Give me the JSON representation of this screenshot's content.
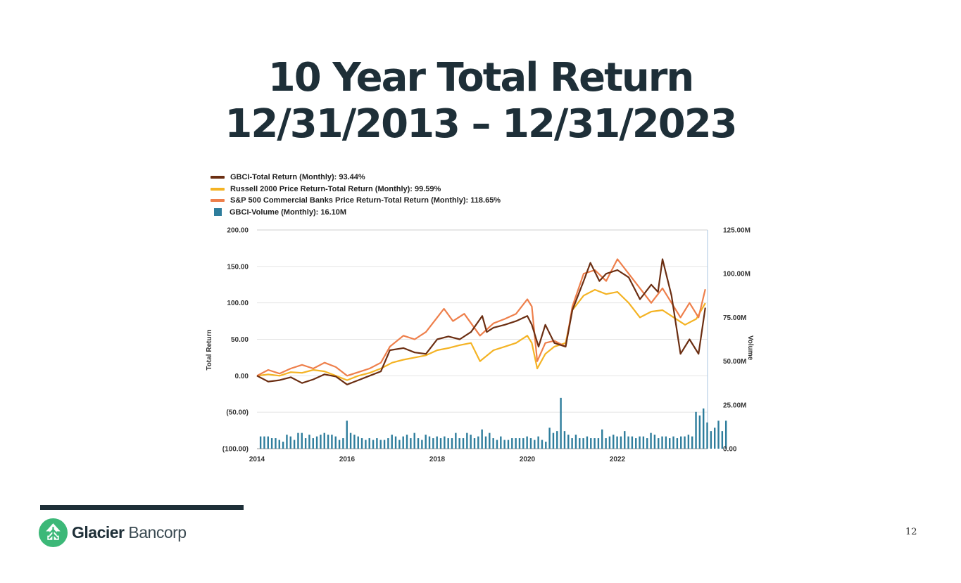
{
  "slide": {
    "title_line1": "10 Year Total Return",
    "title_line2": "12/31/2013 – 12/31/2023",
    "page_number": "12"
  },
  "logo": {
    "name_bold": "Glacier",
    "name_light": "Bancorp",
    "color": "#3cb878"
  },
  "chart_data": {
    "type": "line",
    "legend": [
      {
        "label": "GBCI-Total Return (Monthly): 93.44%",
        "color": "#6b2e12",
        "style": "line"
      },
      {
        "label": "Russell 2000 Price Return-Total Return (Monthly): 99.59%",
        "color": "#f4b324",
        "style": "line"
      },
      {
        "label": "S&P 500 Commercial Banks Price Return-Total Return (Monthly): 118.65%",
        "color": "#ee7f4b",
        "style": "line"
      },
      {
        "label": "GBCI-Volume (Monthly): 16.10M",
        "color": "#2e7d9c",
        "style": "bar"
      }
    ],
    "ylabel": "Total Return",
    "y2label": "Volume",
    "ylim": [
      -100,
      200
    ],
    "y2lim": [
      0,
      125
    ],
    "xlim": [
      2014,
      2024
    ],
    "y_ticks": [
      {
        "v": 200,
        "label": "200.00"
      },
      {
        "v": 150,
        "label": "150.00"
      },
      {
        "v": 100,
        "label": "100.00"
      },
      {
        "v": 50,
        "label": "50.00"
      },
      {
        "v": 0,
        "label": "0.00"
      },
      {
        "v": -50,
        "label": "(50.00)"
      },
      {
        "v": -100,
        "label": "(100.00)"
      }
    ],
    "y2_ticks": [
      {
        "v": 125,
        "label": "125.00M"
      },
      {
        "v": 100,
        "label": "100.00M"
      },
      {
        "v": 75,
        "label": "75.00M"
      },
      {
        "v": 50,
        "label": "50.00M"
      },
      {
        "v": 25,
        "label": "25.00M"
      },
      {
        "v": 0,
        "label": "0.00"
      }
    ],
    "x_ticks": [
      {
        "v": 2014,
        "label": "2014"
      },
      {
        "v": 2016,
        "label": "2016"
      },
      {
        "v": 2018,
        "label": "2018"
      },
      {
        "v": 2020,
        "label": "2020"
      },
      {
        "v": 2022,
        "label": "2022"
      }
    ],
    "grid": true,
    "legend_position": "top-left",
    "series": [
      {
        "name": "GBCI-Total Return (Monthly)",
        "color": "#6b2e12",
        "points": [
          [
            2014.0,
            0
          ],
          [
            2014.25,
            -8
          ],
          [
            2014.5,
            -6
          ],
          [
            2014.75,
            -2
          ],
          [
            2015.0,
            -10
          ],
          [
            2015.25,
            -5
          ],
          [
            2015.5,
            2
          ],
          [
            2015.75,
            -1
          ],
          [
            2016.0,
            -12
          ],
          [
            2016.25,
            -6
          ],
          [
            2016.5,
            0
          ],
          [
            2016.75,
            6
          ],
          [
            2016.95,
            35
          ],
          [
            2017.25,
            38
          ],
          [
            2017.5,
            32
          ],
          [
            2017.75,
            30
          ],
          [
            2018.0,
            50
          ],
          [
            2018.25,
            54
          ],
          [
            2018.5,
            50
          ],
          [
            2018.75,
            60
          ],
          [
            2019.0,
            82
          ],
          [
            2019.1,
            60
          ],
          [
            2019.25,
            66
          ],
          [
            2019.5,
            70
          ],
          [
            2019.75,
            75
          ],
          [
            2020.0,
            82
          ],
          [
            2020.1,
            70
          ],
          [
            2020.25,
            40
          ],
          [
            2020.4,
            70
          ],
          [
            2020.6,
            45
          ],
          [
            2020.85,
            40
          ],
          [
            2021.0,
            90
          ],
          [
            2021.25,
            130
          ],
          [
            2021.4,
            155
          ],
          [
            2021.6,
            130
          ],
          [
            2021.75,
            140
          ],
          [
            2022.0,
            145
          ],
          [
            2022.25,
            135
          ],
          [
            2022.5,
            105
          ],
          [
            2022.75,
            125
          ],
          [
            2022.9,
            115
          ],
          [
            2023.0,
            160
          ],
          [
            2023.2,
            110
          ],
          [
            2023.4,
            30
          ],
          [
            2023.6,
            50
          ],
          [
            2023.8,
            30
          ],
          [
            2023.95,
            93.44
          ]
        ]
      },
      {
        "name": "Russell 2000 Price Return-Total Return (Monthly)",
        "color": "#f4b324",
        "points": [
          [
            2014.0,
            0
          ],
          [
            2014.25,
            2
          ],
          [
            2014.5,
            0
          ],
          [
            2014.75,
            5
          ],
          [
            2015.0,
            4
          ],
          [
            2015.25,
            8
          ],
          [
            2015.5,
            6
          ],
          [
            2015.75,
            0
          ],
          [
            2016.0,
            -6
          ],
          [
            2016.25,
            0
          ],
          [
            2016.5,
            4
          ],
          [
            2016.75,
            10
          ],
          [
            2017.0,
            18
          ],
          [
            2017.25,
            22
          ],
          [
            2017.5,
            25
          ],
          [
            2017.75,
            28
          ],
          [
            2018.0,
            35
          ],
          [
            2018.25,
            38
          ],
          [
            2018.5,
            42
          ],
          [
            2018.75,
            45
          ],
          [
            2018.95,
            20
          ],
          [
            2019.25,
            35
          ],
          [
            2019.5,
            40
          ],
          [
            2019.75,
            45
          ],
          [
            2020.0,
            55
          ],
          [
            2020.1,
            45
          ],
          [
            2020.22,
            10
          ],
          [
            2020.4,
            30
          ],
          [
            2020.6,
            40
          ],
          [
            2020.85,
            45
          ],
          [
            2021.0,
            90
          ],
          [
            2021.25,
            110
          ],
          [
            2021.5,
            118
          ],
          [
            2021.75,
            112
          ],
          [
            2022.0,
            115
          ],
          [
            2022.25,
            100
          ],
          [
            2022.5,
            80
          ],
          [
            2022.75,
            88
          ],
          [
            2023.0,
            90
          ],
          [
            2023.25,
            80
          ],
          [
            2023.5,
            70
          ],
          [
            2023.75,
            78
          ],
          [
            2023.95,
            99.59
          ]
        ]
      },
      {
        "name": "S&P 500 Commercial Banks Price Return-Total Return (Monthly)",
        "color": "#ee7f4b",
        "points": [
          [
            2014.0,
            0
          ],
          [
            2014.25,
            8
          ],
          [
            2014.5,
            3
          ],
          [
            2014.75,
            10
          ],
          [
            2015.0,
            15
          ],
          [
            2015.25,
            10
          ],
          [
            2015.5,
            18
          ],
          [
            2015.75,
            12
          ],
          [
            2016.0,
            0
          ],
          [
            2016.25,
            5
          ],
          [
            2016.5,
            10
          ],
          [
            2016.75,
            18
          ],
          [
            2016.95,
            40
          ],
          [
            2017.25,
            55
          ],
          [
            2017.5,
            50
          ],
          [
            2017.75,
            60
          ],
          [
            2018.0,
            80
          ],
          [
            2018.15,
            92
          ],
          [
            2018.35,
            75
          ],
          [
            2018.6,
            85
          ],
          [
            2018.95,
            55
          ],
          [
            2019.25,
            72
          ],
          [
            2019.5,
            78
          ],
          [
            2019.75,
            85
          ],
          [
            2020.0,
            105
          ],
          [
            2020.1,
            95
          ],
          [
            2020.22,
            20
          ],
          [
            2020.4,
            45
          ],
          [
            2020.6,
            48
          ],
          [
            2020.85,
            40
          ],
          [
            2021.0,
            95
          ],
          [
            2021.25,
            140
          ],
          [
            2021.5,
            145
          ],
          [
            2021.75,
            130
          ],
          [
            2022.0,
            160
          ],
          [
            2022.25,
            140
          ],
          [
            2022.5,
            120
          ],
          [
            2022.75,
            100
          ],
          [
            2023.0,
            120
          ],
          [
            2023.25,
            95
          ],
          [
            2023.4,
            80
          ],
          [
            2023.6,
            100
          ],
          [
            2023.8,
            80
          ],
          [
            2023.95,
            118.65
          ]
        ]
      }
    ],
    "volume": {
      "name": "GBCI-Volume (Monthly)",
      "color": "#2e7d9c",
      "start": 2014.08,
      "step": 0.0833,
      "values": [
        7,
        7,
        7,
        6,
        6,
        5,
        4,
        8,
        7,
        5,
        9,
        9,
        6,
        8,
        6,
        7,
        8,
        9,
        8,
        8,
        7,
        5,
        6,
        16,
        9,
        8,
        7,
        6,
        5,
        6,
        5,
        6,
        5,
        5,
        6,
        8,
        7,
        5,
        7,
        8,
        6,
        9,
        6,
        5,
        8,
        7,
        6,
        7,
        6,
        7,
        6,
        6,
        9,
        6,
        6,
        9,
        8,
        6,
        7,
        11,
        7,
        9,
        6,
        5,
        7,
        5,
        5,
        6,
        6,
        6,
        6,
        7,
        6,
        5,
        7,
        5,
        4,
        12,
        9,
        10,
        29,
        10,
        8,
        6,
        8,
        6,
        6,
        7,
        6,
        6,
        6,
        11,
        6,
        7,
        8,
        7,
        7,
        10,
        7,
        7,
        6,
        7,
        7,
        6,
        9,
        8,
        6,
        7,
        7,
        6,
        7,
        6,
        7,
        7,
        8,
        7,
        21,
        19,
        23,
        15,
        10,
        12,
        16,
        10,
        16
      ]
    }
  }
}
